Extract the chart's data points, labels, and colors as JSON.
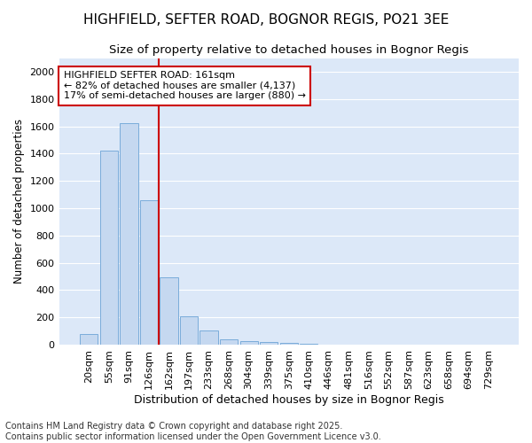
{
  "title1": "HIGHFIELD, SEFTER ROAD, BOGNOR REGIS, PO21 3EE",
  "title2": "Size of property relative to detached houses in Bognor Regis",
  "xlabel": "Distribution of detached houses by size in Bognor Regis",
  "ylabel": "Number of detached properties",
  "categories": [
    "20sqm",
    "55sqm",
    "91sqm",
    "126sqm",
    "162sqm",
    "197sqm",
    "233sqm",
    "268sqm",
    "304sqm",
    "339sqm",
    "375sqm",
    "410sqm",
    "446sqm",
    "481sqm",
    "516sqm",
    "552sqm",
    "587sqm",
    "623sqm",
    "658sqm",
    "694sqm",
    "729sqm"
  ],
  "values": [
    80,
    1425,
    1620,
    1060,
    490,
    205,
    105,
    40,
    25,
    18,
    10,
    5,
    2,
    1,
    0,
    0,
    0,
    0,
    0,
    0,
    0
  ],
  "bar_color": "#c5d8f0",
  "bar_edge_color": "#7aacda",
  "vline_index": 4,
  "vline_color": "#cc0000",
  "annotation_text": "HIGHFIELD SEFTER ROAD: 161sqm\n← 82% of detached houses are smaller (4,137)\n17% of semi-detached houses are larger (880) →",
  "annotation_box_color": "#ffffff",
  "annotation_box_edge": "#cc0000",
  "ylim": [
    0,
    2100
  ],
  "yticks": [
    0,
    200,
    400,
    600,
    800,
    1000,
    1200,
    1400,
    1600,
    1800,
    2000
  ],
  "bg_color": "#dce8f8",
  "plot_bg_color": "#dce8f8",
  "fig_bg_color": "#ffffff",
  "grid_color": "#ffffff",
  "footer1": "Contains HM Land Registry data © Crown copyright and database right 2025.",
  "footer2": "Contains public sector information licensed under the Open Government Licence v3.0.",
  "title1_fontsize": 11,
  "title2_fontsize": 9.5,
  "xlabel_fontsize": 9,
  "ylabel_fontsize": 8.5,
  "tick_fontsize": 8,
  "annotation_fontsize": 8,
  "footer_fontsize": 7
}
